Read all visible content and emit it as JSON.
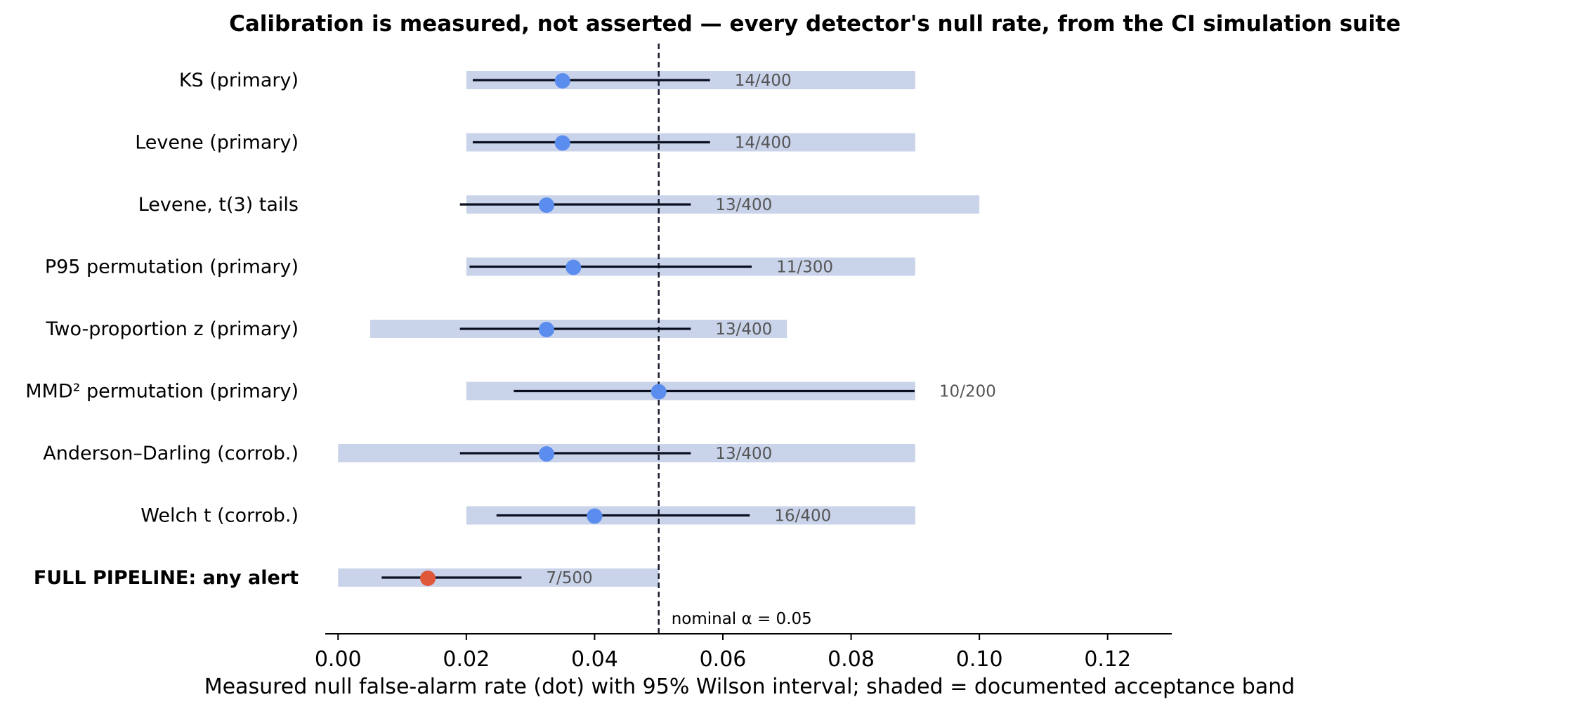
{
  "chart_data": {
    "type": "dot-interval",
    "title": "Calibration is measured, not asserted — every detector's null rate, from the CI simulation suite",
    "xlabel": "Measured null false-alarm rate (dot) with 95% Wilson interval; shaded = documented acceptance band",
    "xlim": [
      -0.002,
      0.13
    ],
    "xticks": [
      0.0,
      0.02,
      0.04,
      0.06,
      0.08,
      0.1,
      0.12
    ],
    "xtick_labels": [
      "0.00",
      "0.02",
      "0.04",
      "0.06",
      "0.08",
      "0.10",
      "0.12"
    ],
    "reference_line": {
      "x": 0.05,
      "label": "nominal α = 0.05",
      "style": "dashed"
    },
    "grid": false,
    "rows": [
      {
        "label": "KS (primary)",
        "rate": 0.035,
        "ci": [
          0.021,
          0.058
        ],
        "band": [
          0.02,
          0.09
        ],
        "count": "14/400",
        "highlight": false
      },
      {
        "label": "Levene (primary)",
        "rate": 0.035,
        "ci": [
          0.021,
          0.058
        ],
        "band": [
          0.02,
          0.09
        ],
        "count": "14/400",
        "highlight": false
      },
      {
        "label": "Levene, t(3) tails",
        "rate": 0.0325,
        "ci": [
          0.019,
          0.055
        ],
        "band": [
          0.02,
          0.1
        ],
        "count": "13/400",
        "highlight": false
      },
      {
        "label": "P95 permutation (primary)",
        "rate": 0.0367,
        "ci": [
          0.0205,
          0.0645
        ],
        "band": [
          0.02,
          0.09
        ],
        "count": "11/300",
        "highlight": false
      },
      {
        "label": "Two-proportion z (primary)",
        "rate": 0.0325,
        "ci": [
          0.019,
          0.055
        ],
        "band": [
          0.005,
          0.07
        ],
        "count": "13/400",
        "highlight": false
      },
      {
        "label": "MMD² permutation (primary)",
        "rate": 0.05,
        "ci": [
          0.0274,
          0.0899
        ],
        "band": [
          0.02,
          0.09
        ],
        "count": "10/200",
        "highlight": false
      },
      {
        "label": "Anderson–Darling (corrob.)",
        "rate": 0.0325,
        "ci": [
          0.019,
          0.055
        ],
        "band": [
          0.0,
          0.09
        ],
        "count": "13/400",
        "highlight": false
      },
      {
        "label": "Welch t (corrob.)",
        "rate": 0.04,
        "ci": [
          0.0247,
          0.0642
        ],
        "band": [
          0.02,
          0.09
        ],
        "count": "16/400",
        "highlight": false
      },
      {
        "label": "FULL PIPELINE: any alert",
        "rate": 0.014,
        "ci": [
          0.0068,
          0.0286
        ],
        "band": [
          0.0,
          0.05
        ],
        "count": "7/500",
        "highlight": true
      }
    ],
    "colors": {
      "band": "#c9d3ea",
      "interval": "#0b1020",
      "dot": "#5b8def",
      "dot_highlight": "#e0583a",
      "count_text": "#555555",
      "reference_line": "#1a1a2e"
    }
  }
}
